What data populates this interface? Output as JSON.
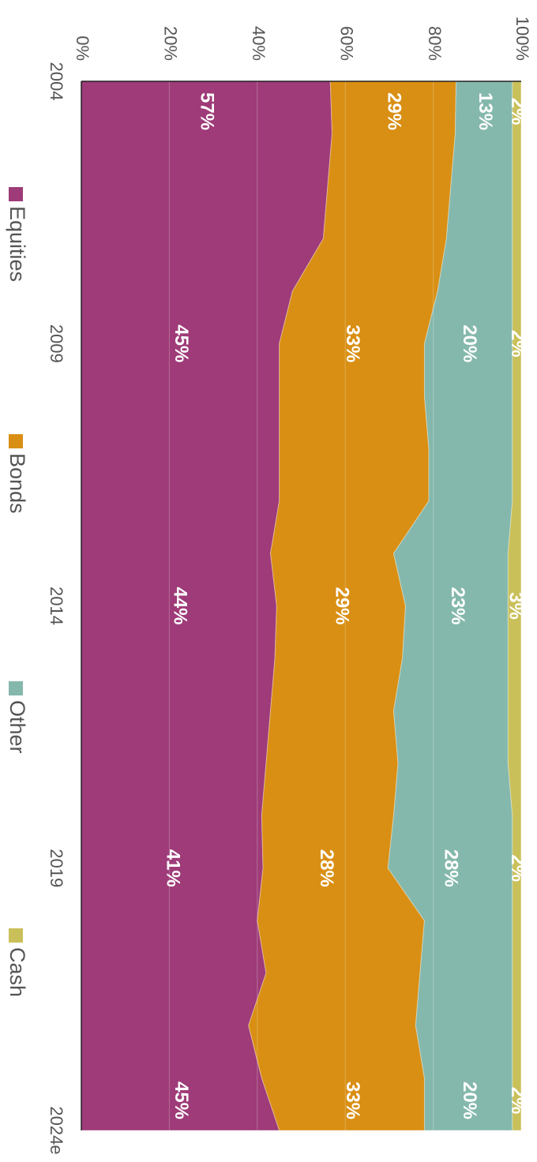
{
  "chart_data": {
    "type": "stacked_area",
    "categories": [
      "2004",
      null,
      null,
      null,
      null,
      "2009",
      null,
      null,
      null,
      null,
      "2014",
      null,
      null,
      null,
      null,
      "2019",
      null,
      null,
      null,
      null,
      "2024e"
    ],
    "series": [
      {
        "name": "Equities",
        "color": "#9e3b78",
        "values": [
          56.6,
          57,
          56,
          55,
          48,
          45,
          45,
          45,
          45,
          43,
          44.4,
          44,
          43,
          42,
          41,
          41.3,
          40,
          42,
          38,
          41,
          45
        ],
        "value_labels": [
          "57%",
          null,
          null,
          null,
          null,
          "45%",
          null,
          null,
          null,
          null,
          "44%",
          null,
          null,
          null,
          null,
          "41%",
          null,
          null,
          null,
          null,
          "45%"
        ]
      },
      {
        "name": "Bonds",
        "color": "#d98f14",
        "values": [
          28.6,
          28,
          28,
          28,
          33,
          33,
          33,
          34,
          34,
          28,
          29.3,
          29,
          28,
          30,
          30,
          28.4,
          38,
          35,
          38,
          37,
          33
        ],
        "value_labels": [
          "29%",
          null,
          null,
          null,
          null,
          "33%",
          null,
          null,
          null,
          null,
          "29%",
          null,
          null,
          null,
          null,
          "28%",
          null,
          null,
          null,
          null,
          "33%"
        ]
      },
      {
        "name": "Other",
        "color": "#85b8ac",
        "values": [
          12.8,
          13,
          14,
          15,
          17,
          20,
          20,
          19,
          19,
          26,
          23.3,
          24,
          26,
          25,
          27,
          28.3,
          20,
          21,
          22,
          20,
          20
        ],
        "value_labels": [
          "13%",
          null,
          null,
          null,
          null,
          "20%",
          null,
          null,
          null,
          null,
          "23%",
          null,
          null,
          null,
          null,
          "28%",
          null,
          null,
          null,
          null,
          "20%"
        ]
      },
      {
        "name": "Cash",
        "color": "#c9c05a",
        "values": [
          2,
          2,
          2,
          2,
          2,
          2,
          2,
          2,
          2,
          3,
          3,
          3,
          3,
          3,
          2,
          2,
          2,
          2,
          2,
          2,
          2
        ],
        "value_labels": [
          "2%",
          null,
          null,
          null,
          null,
          "2%",
          null,
          null,
          null,
          null,
          "3%",
          null,
          null,
          null,
          null,
          "2%",
          null,
          null,
          null,
          null,
          "2%"
        ]
      }
    ],
    "ylim": [
      0,
      100
    ],
    "yticks": [
      {
        "value": 0,
        "label": "0%"
      },
      {
        "value": 20,
        "label": "20%"
      },
      {
        "value": 40,
        "label": "40%"
      },
      {
        "value": 60,
        "label": "60%"
      },
      {
        "value": 80,
        "label": "80%"
      },
      {
        "value": 100,
        "label": "100%"
      }
    ],
    "grid": true,
    "legend": "bottom"
  }
}
